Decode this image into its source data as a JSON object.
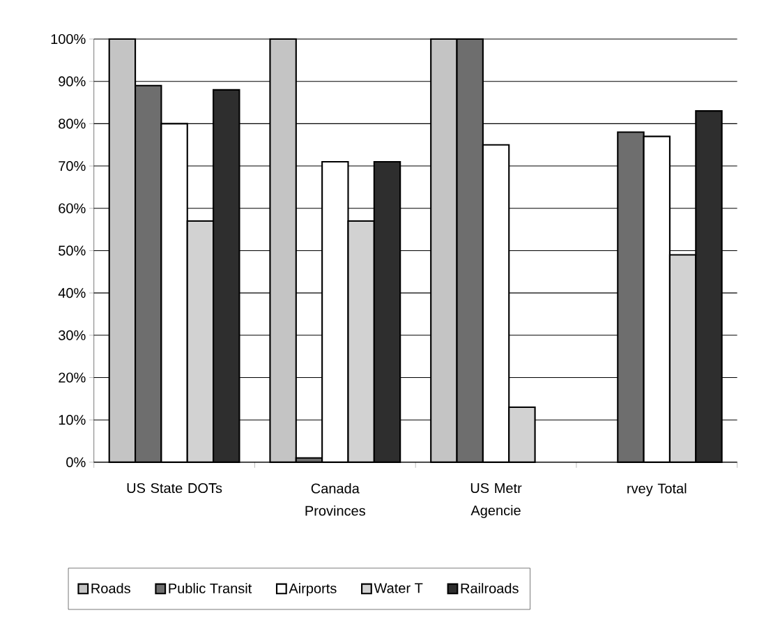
{
  "chart_data": {
    "type": "bar",
    "categories": [
      "US State DOTs",
      "Canada Provinces",
      "US Metr Agencie",
      "rvey Total"
    ],
    "series": [
      {
        "name": "Roads",
        "color": "#c4c4c4",
        "values": [
          100,
          100,
          100,
          null
        ]
      },
      {
        "name": "Public Transit",
        "color": "#6e6e6e",
        "values": [
          89,
          1,
          100,
          78
        ]
      },
      {
        "name": "Airports",
        "color": "#ffffff",
        "values": [
          80,
          71,
          75,
          77
        ]
      },
      {
        "name": "Water T",
        "color": "#d2d2d2",
        "values": [
          57,
          57,
          13,
          49
        ]
      },
      {
        "name": "Railroads",
        "color": "#2e2e2e",
        "values": [
          88,
          71,
          null,
          83
        ]
      }
    ],
    "ylim": [
      0,
      100
    ],
    "yticks": [
      {
        "value": 0,
        "label": "0%"
      },
      {
        "value": 10,
        "label": "10%"
      },
      {
        "value": 20,
        "label": "20%"
      },
      {
        "value": 30,
        "label": "30%"
      },
      {
        "value": 40,
        "label": "40%"
      },
      {
        "value": 50,
        "label": "50%"
      },
      {
        "value": 60,
        "label": "60%"
      },
      {
        "value": 70,
        "label": "70%"
      },
      {
        "value": 80,
        "label": "80%"
      },
      {
        "value": 90,
        "label": "90%"
      },
      {
        "value": 100,
        "label": "100%"
      }
    ],
    "grid": "y",
    "legend": "bottom"
  }
}
